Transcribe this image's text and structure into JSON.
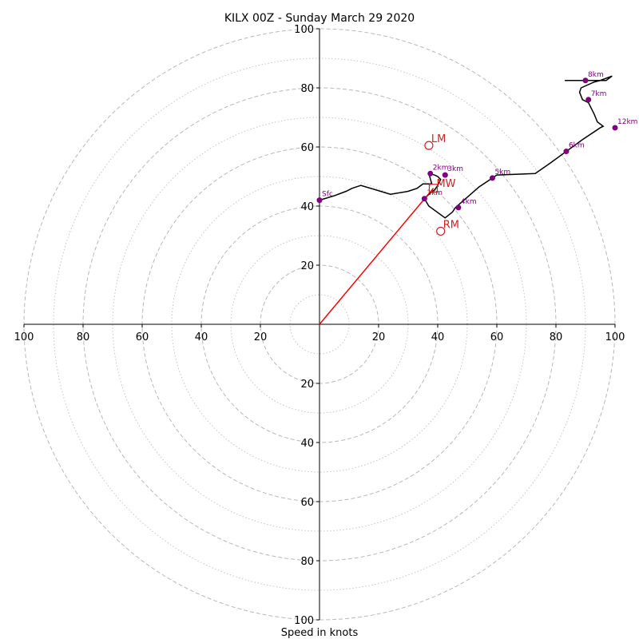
{
  "chart_data": {
    "type": "line",
    "title": "KILX 00Z - Sunday March 29 2020",
    "xlabel": "Speed in knots",
    "ylabel": "",
    "xlim": [
      -100,
      100
    ],
    "ylim": [
      -100,
      100
    ],
    "grid": true,
    "ring_major": [
      20,
      40,
      60,
      80,
      100
    ],
    "ring_minor": [
      10,
      30,
      50,
      70,
      90
    ],
    "x_ticks": [
      {
        "v": -100,
        "label": "100"
      },
      {
        "v": -80,
        "label": "80"
      },
      {
        "v": -60,
        "label": "60"
      },
      {
        "v": -40,
        "label": "40"
      },
      {
        "v": -20,
        "label": "20"
      },
      {
        "v": 20,
        "label": "20"
      },
      {
        "v": 40,
        "label": "40"
      },
      {
        "v": 60,
        "label": "60"
      },
      {
        "v": 80,
        "label": "80"
      },
      {
        "v": 100,
        "label": "100"
      }
    ],
    "y_ticks": [
      {
        "v": 100,
        "label": "100"
      },
      {
        "v": 80,
        "label": "80"
      },
      {
        "v": 60,
        "label": "60"
      },
      {
        "v": 40,
        "label": "40"
      },
      {
        "v": 20,
        "label": "20"
      },
      {
        "v": -20,
        "label": "20"
      },
      {
        "v": -40,
        "label": "40"
      },
      {
        "v": -60,
        "label": "60"
      },
      {
        "v": -80,
        "label": "80"
      },
      {
        "v": -100,
        "label": "100"
      }
    ],
    "hodograph": {
      "x": [
        0,
        5,
        9,
        11,
        14,
        19,
        24,
        30,
        33,
        35,
        38,
        37,
        39,
        40,
        41,
        40,
        39,
        37,
        35.5,
        37,
        42.5,
        45,
        46,
        50,
        54,
        58.5,
        60,
        73,
        78,
        83.5,
        89,
        95,
        96,
        94,
        93,
        91,
        89,
        88,
        88.5,
        93,
        95,
        99,
        97,
        88,
        83
      ],
      "y": [
        42,
        43.5,
        45,
        46,
        47,
        45.5,
        44,
        45,
        46,
        47.5,
        47.5,
        51,
        50.5,
        50,
        49,
        47,
        45.5,
        44,
        42.5,
        40,
        36,
        38,
        39.5,
        43,
        46.5,
        49.5,
        50.5,
        51,
        54.5,
        58.5,
        62.5,
        66.5,
        67,
        68.5,
        71,
        75,
        76,
        78.5,
        80,
        82,
        82.5,
        84,
        82.5,
        82.5,
        82.5
      ],
      "color": "#000000"
    },
    "markers": [
      {
        "label": "Sfc",
        "x": 0,
        "y": 42
      },
      {
        "label": "1km",
        "x": 35.5,
        "y": 42.5
      },
      {
        "label": "2km",
        "x": 37.5,
        "y": 51
      },
      {
        "label": "3km",
        "x": 42.5,
        "y": 50.5
      },
      {
        "label": "4km",
        "x": 47,
        "y": 39.5
      },
      {
        "label": "5km",
        "x": 58.5,
        "y": 49.5
      },
      {
        "label": "6km",
        "x": 83.5,
        "y": 58.5
      },
      {
        "label": "7km",
        "x": 91,
        "y": 76
      },
      {
        "label": "8km",
        "x": 90,
        "y": 82.5
      },
      {
        "label": "12km",
        "x": 100,
        "y": 66.5
      }
    ],
    "marker_color": "#800080",
    "storm_points": [
      {
        "label": "LM",
        "x": 37,
        "y": 60.5
      },
      {
        "label": "MW",
        "x": 38.5,
        "y": 46
      },
      {
        "label": "RM",
        "x": 41,
        "y": 31.5
      }
    ],
    "storm_color": "#cc2222",
    "shear_vector": {
      "x1": 0,
      "y1": 0,
      "x2": 38.5,
      "y2": 46,
      "color": "#ff0000"
    }
  }
}
